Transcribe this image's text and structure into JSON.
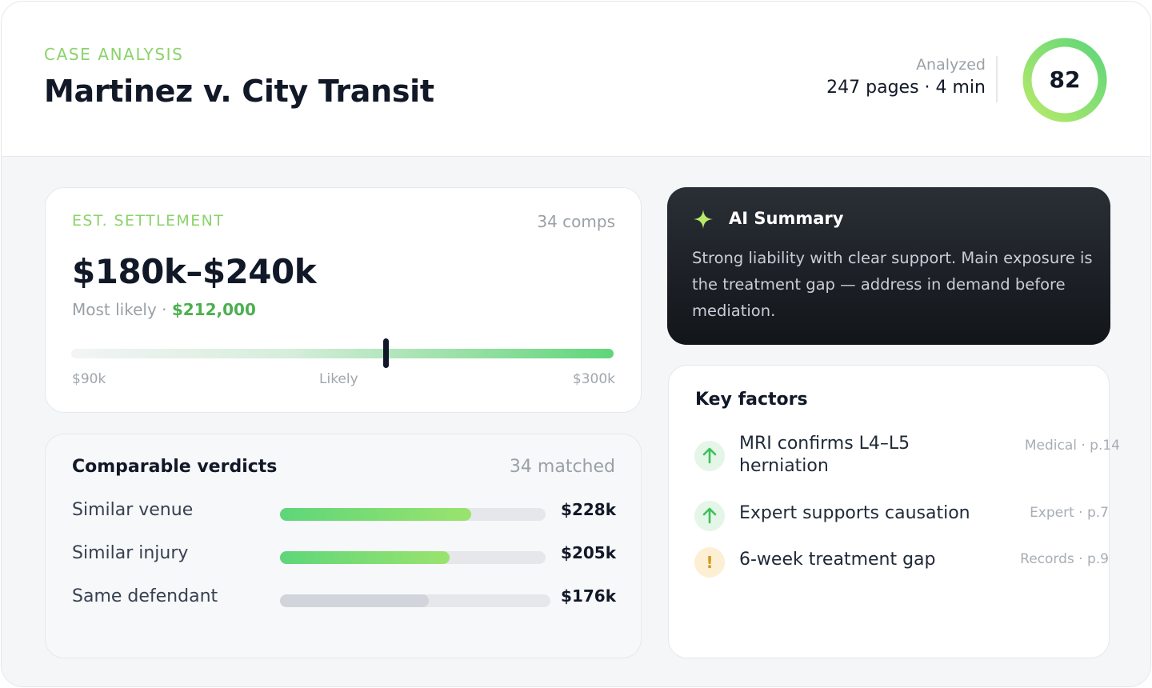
{
  "header": {
    "eyebrow": "CASE ANALYSIS",
    "title": "Martinez v. City Transit",
    "analyzed_label": "Analyzed",
    "analyzed_value": "247 pages · 4 min",
    "score": "82",
    "score_fraction": 0.82
  },
  "settlement": {
    "label": "EST. SETTLEMENT",
    "comps": "34 comps",
    "range": "$180k–$240k",
    "likely_label": "Most likely · ",
    "likely_value": "$212,000",
    "axis_min": "$90k",
    "axis_mid": "Likely",
    "axis_max": "$300k",
    "min_value": 90000,
    "max_value": 300000,
    "likely_amount": 212000
  },
  "comparables": {
    "title": "Comparable verdicts",
    "count": "34 matched",
    "rows": [
      {
        "label": "Similar venue",
        "value": "$228k",
        "fill_fraction": 0.72,
        "color": "green"
      },
      {
        "label": "Similar injury",
        "value": "$205k",
        "fill_fraction": 0.64,
        "color": "green"
      },
      {
        "label": "Same defendant",
        "value": "$176k",
        "fill_fraction": 0.55,
        "color": "gray"
      }
    ]
  },
  "ai_summary": {
    "icon": "sparkle-icon",
    "title": "AI Summary",
    "body": "Strong liability with clear support. Main exposure is the treatment gap — address in demand before mediation."
  },
  "key_factors": {
    "title": "Key factors",
    "items": [
      {
        "icon": "arrow-up-icon",
        "text": "MRI confirms L4–L5 herniation",
        "source": "Medical · p.14",
        "kind": "positive"
      },
      {
        "icon": "arrow-up-icon",
        "text": "Expert supports causation",
        "source": "Expert · p.7",
        "kind": "positive"
      },
      {
        "icon": "warning-icon",
        "text": "6-week treatment gap",
        "source": "Records · p.9",
        "kind": "warning"
      }
    ]
  },
  "colors": {
    "accent_green": "#5ed67a",
    "eyebrow_green": "#8ad36a",
    "likely_green": "#4caf50",
    "warning": "#d19a1b"
  }
}
